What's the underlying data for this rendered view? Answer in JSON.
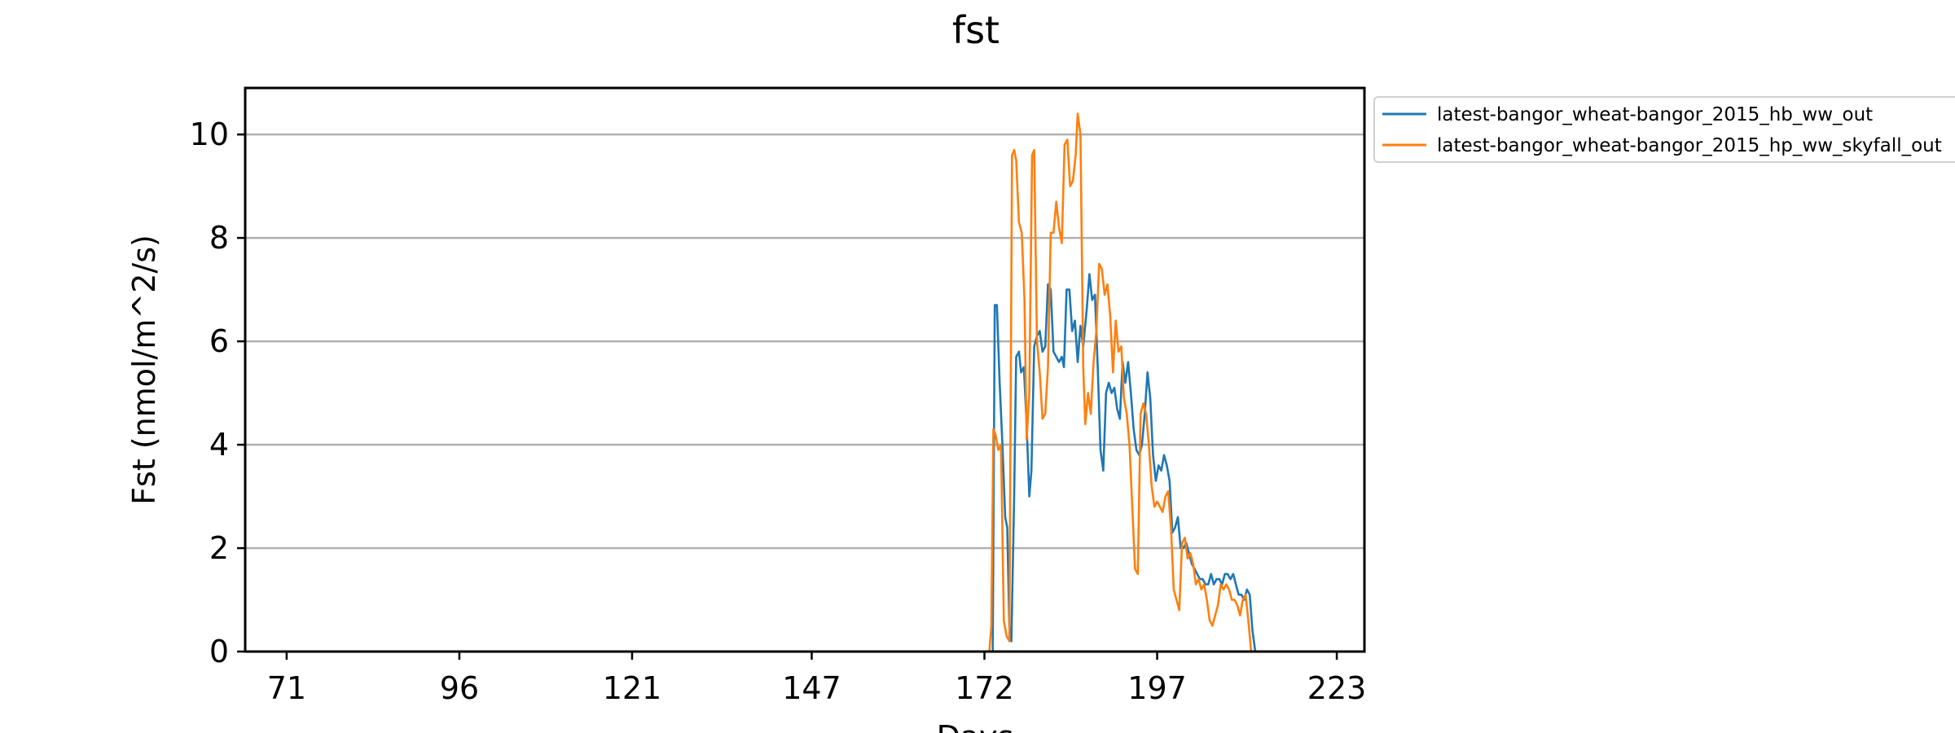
{
  "chart_data": {
    "type": "line",
    "title": "fst",
    "xlabel": "Days",
    "ylabel": "Fst (nmol/m^2/s)",
    "xlim": [
      65,
      227
    ],
    "ylim": [
      0,
      10.9
    ],
    "xticks": [
      71,
      96,
      121,
      147,
      172,
      197,
      223
    ],
    "xtick_labels": [
      "71",
      "96",
      "121",
      "147",
      "172",
      "197",
      "223"
    ],
    "yticks": [
      0,
      2,
      4,
      6,
      8,
      10
    ],
    "ytick_labels": [
      "0",
      "2",
      "4",
      "6",
      "8",
      "10"
    ],
    "grid": "horizontal",
    "legend_position": "outside-right-top",
    "series": [
      {
        "name": "latest-bangor_wheat-bangor_2015_hb_ww_out",
        "color": "#1f77b4",
        "points": [
          [
            65.5,
            0
          ],
          [
            173.2,
            0
          ],
          [
            173.5,
            6.7
          ],
          [
            173.8,
            6.7
          ],
          [
            174.2,
            5.2
          ],
          [
            174.6,
            4.0
          ],
          [
            175.0,
            2.6
          ],
          [
            175.3,
            2.4
          ],
          [
            175.6,
            0.5
          ],
          [
            175.9,
            0.2
          ],
          [
            176.3,
            3.0
          ],
          [
            176.6,
            5.7
          ],
          [
            177.0,
            5.8
          ],
          [
            177.3,
            5.4
          ],
          [
            177.7,
            5.5
          ],
          [
            178.1,
            4.4
          ],
          [
            178.5,
            3.0
          ],
          [
            178.8,
            3.5
          ],
          [
            179.2,
            5.9
          ],
          [
            179.6,
            6.1
          ],
          [
            180.0,
            6.2
          ],
          [
            180.4,
            5.8
          ],
          [
            180.8,
            5.9
          ],
          [
            181.2,
            7.1
          ],
          [
            181.6,
            7.0
          ],
          [
            182.0,
            5.8
          ],
          [
            182.4,
            5.7
          ],
          [
            182.8,
            5.6
          ],
          [
            183.2,
            5.7
          ],
          [
            183.5,
            5.5
          ],
          [
            183.9,
            7.0
          ],
          [
            184.3,
            7.0
          ],
          [
            184.7,
            6.2
          ],
          [
            185.1,
            6.4
          ],
          [
            185.5,
            5.6
          ],
          [
            185.9,
            6.3
          ],
          [
            186.3,
            5.9
          ],
          [
            186.8,
            6.6
          ],
          [
            187.2,
            7.3
          ],
          [
            187.6,
            6.8
          ],
          [
            188.0,
            6.9
          ],
          [
            188.4,
            5.5
          ],
          [
            188.8,
            3.9
          ],
          [
            189.2,
            3.5
          ],
          [
            189.6,
            5.0
          ],
          [
            190.0,
            5.2
          ],
          [
            190.4,
            5.0
          ],
          [
            190.8,
            5.1
          ],
          [
            191.2,
            4.7
          ],
          [
            191.6,
            4.5
          ],
          [
            192.0,
            5.6
          ],
          [
            192.4,
            5.2
          ],
          [
            192.8,
            5.6
          ],
          [
            193.2,
            5.0
          ],
          [
            193.6,
            4.3
          ],
          [
            194.0,
            3.9
          ],
          [
            194.4,
            3.8
          ],
          [
            194.8,
            4.0
          ],
          [
            195.2,
            4.6
          ],
          [
            195.6,
            5.4
          ],
          [
            196.0,
            4.9
          ],
          [
            196.4,
            3.8
          ],
          [
            196.8,
            3.3
          ],
          [
            197.2,
            3.6
          ],
          [
            197.6,
            3.5
          ],
          [
            198.0,
            3.8
          ],
          [
            198.4,
            3.6
          ],
          [
            198.8,
            3.3
          ],
          [
            199.2,
            2.3
          ],
          [
            199.6,
            2.4
          ],
          [
            200.0,
            2.6
          ],
          [
            200.4,
            2.0
          ],
          [
            200.8,
            2.0
          ],
          [
            201.2,
            2.1
          ],
          [
            201.6,
            1.9
          ],
          [
            202.0,
            1.7
          ],
          [
            202.4,
            1.6
          ],
          [
            202.8,
            1.5
          ],
          [
            203.2,
            1.4
          ],
          [
            203.6,
            1.4
          ],
          [
            204.0,
            1.3
          ],
          [
            204.4,
            1.3
          ],
          [
            204.8,
            1.5
          ],
          [
            205.2,
            1.3
          ],
          [
            205.6,
            1.4
          ],
          [
            206.0,
            1.4
          ],
          [
            206.4,
            1.3
          ],
          [
            206.8,
            1.5
          ],
          [
            207.2,
            1.5
          ],
          [
            207.6,
            1.4
          ],
          [
            208.0,
            1.5
          ],
          [
            208.4,
            1.3
          ],
          [
            208.8,
            1.1
          ],
          [
            209.2,
            1.1
          ],
          [
            209.6,
            1.0
          ],
          [
            210.0,
            1.2
          ],
          [
            210.4,
            1.1
          ],
          [
            210.8,
            0.4
          ],
          [
            211.2,
            0.0
          ],
          [
            215.0,
            0.0
          ]
        ]
      },
      {
        "name": "latest-bangor_wheat-bangor_2015_hp_ww_skyfall_out",
        "color": "#ff7f0e",
        "points": [
          [
            65.5,
            0
          ],
          [
            172.7,
            0
          ],
          [
            173.0,
            0.5
          ],
          [
            173.3,
            4.3
          ],
          [
            173.6,
            4.2
          ],
          [
            174.0,
            3.9
          ],
          [
            174.4,
            4.0
          ],
          [
            174.8,
            0.6
          ],
          [
            175.2,
            0.3
          ],
          [
            175.6,
            0.2
          ],
          [
            176.0,
            9.6
          ],
          [
            176.3,
            9.7
          ],
          [
            176.6,
            9.5
          ],
          [
            177.0,
            8.3
          ],
          [
            177.4,
            8.1
          ],
          [
            177.8,
            6.8
          ],
          [
            178.1,
            4.1
          ],
          [
            178.5,
            5.0
          ],
          [
            178.9,
            9.6
          ],
          [
            179.2,
            9.7
          ],
          [
            179.6,
            6.0
          ],
          [
            180.0,
            5.4
          ],
          [
            180.4,
            4.5
          ],
          [
            180.8,
            4.6
          ],
          [
            181.2,
            5.5
          ],
          [
            181.6,
            8.1
          ],
          [
            182.0,
            8.1
          ],
          [
            182.4,
            8.7
          ],
          [
            182.8,
            8.2
          ],
          [
            183.2,
            7.9
          ],
          [
            183.6,
            9.8
          ],
          [
            184.0,
            9.9
          ],
          [
            184.4,
            9.0
          ],
          [
            184.8,
            9.1
          ],
          [
            185.2,
            9.6
          ],
          [
            185.5,
            10.4
          ],
          [
            185.9,
            10.0
          ],
          [
            186.3,
            5.5
          ],
          [
            186.6,
            4.4
          ],
          [
            187.0,
            5.0
          ],
          [
            187.4,
            4.6
          ],
          [
            187.8,
            5.6
          ],
          [
            188.2,
            6.2
          ],
          [
            188.6,
            7.5
          ],
          [
            189.0,
            7.4
          ],
          [
            189.4,
            6.9
          ],
          [
            189.8,
            7.1
          ],
          [
            190.2,
            6.5
          ],
          [
            190.6,
            5.4
          ],
          [
            191.0,
            6.4
          ],
          [
            191.4,
            5.8
          ],
          [
            191.8,
            5.9
          ],
          [
            192.2,
            4.9
          ],
          [
            192.6,
            4.6
          ],
          [
            193.0,
            4.0
          ],
          [
            193.4,
            2.8
          ],
          [
            193.8,
            1.6
          ],
          [
            194.2,
            1.5
          ],
          [
            194.6,
            4.6
          ],
          [
            195.0,
            4.8
          ],
          [
            195.4,
            4.6
          ],
          [
            195.8,
            4.0
          ],
          [
            196.2,
            3.2
          ],
          [
            196.6,
            2.8
          ],
          [
            197.0,
            2.9
          ],
          [
            197.4,
            2.8
          ],
          [
            197.8,
            2.7
          ],
          [
            198.2,
            3.0
          ],
          [
            198.6,
            3.1
          ],
          [
            199.0,
            2.4
          ],
          [
            199.4,
            1.2
          ],
          [
            199.8,
            1.0
          ],
          [
            200.2,
            0.8
          ],
          [
            200.6,
            2.1
          ],
          [
            201.0,
            2.2
          ],
          [
            201.4,
            1.8
          ],
          [
            201.8,
            1.9
          ],
          [
            202.2,
            1.7
          ],
          [
            202.6,
            1.3
          ],
          [
            203.0,
            1.4
          ],
          [
            203.4,
            1.2
          ],
          [
            203.8,
            1.3
          ],
          [
            204.2,
            1.0
          ],
          [
            204.6,
            0.6
          ],
          [
            205.0,
            0.5
          ],
          [
            205.4,
            0.7
          ],
          [
            205.8,
            0.9
          ],
          [
            206.2,
            1.3
          ],
          [
            206.6,
            1.2
          ],
          [
            207.0,
            1.3
          ],
          [
            207.4,
            1.2
          ],
          [
            207.8,
            1.0
          ],
          [
            208.2,
            1.0
          ],
          [
            208.6,
            0.9
          ],
          [
            209.0,
            0.7
          ],
          [
            209.4,
            1.0
          ],
          [
            209.8,
            1.1
          ],
          [
            210.2,
            0.6
          ],
          [
            210.6,
            0.0
          ],
          [
            214.8,
            0.0
          ]
        ]
      }
    ]
  }
}
